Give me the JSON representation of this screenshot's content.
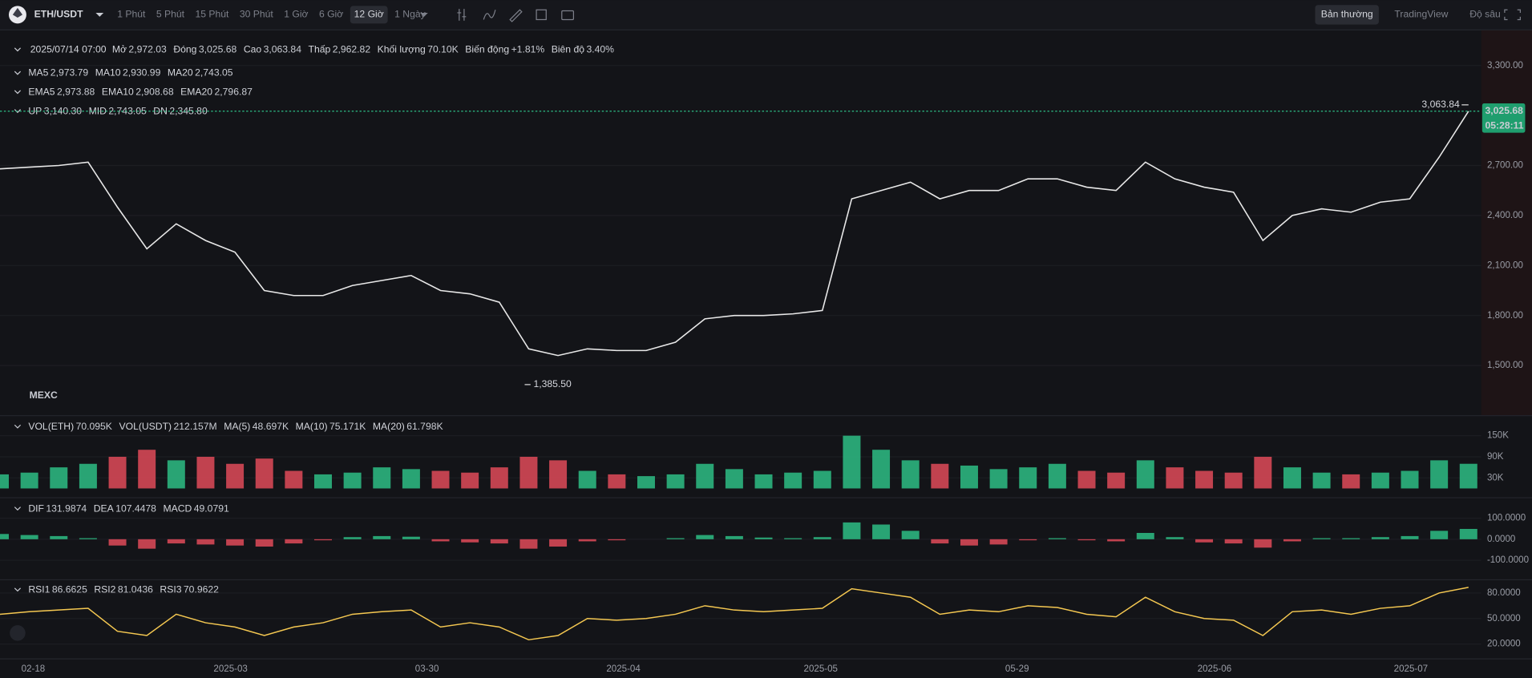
{
  "toolbar": {
    "symbol": "ETH/USDT",
    "timeframes": [
      {
        "label": "1 Phút"
      },
      {
        "label": "5 Phút"
      },
      {
        "label": "15 Phút"
      },
      {
        "label": "30 Phút"
      },
      {
        "label": "1 Giờ"
      },
      {
        "label": "6 Giờ"
      },
      {
        "label": "12 Giờ",
        "active": true
      },
      {
        "label": "1 Ngày"
      }
    ],
    "views": [
      {
        "label": "Bản thường",
        "active": true
      },
      {
        "label": "TradingView"
      },
      {
        "label": "Độ sâu"
      }
    ]
  },
  "info": {
    "time": "2025/07/14 07:00",
    "items": [
      {
        "label": "Mở",
        "value": "2,972.03"
      },
      {
        "label": "Đóng",
        "value": "3,025.68"
      },
      {
        "label": "Cao",
        "value": "3,063.84"
      },
      {
        "label": "Thấp",
        "value": "2,962.82"
      },
      {
        "label": "Khối lượng",
        "value": "70.10K"
      },
      {
        "label": "Biến động",
        "value": "+1.81%"
      },
      {
        "label": "Biên độ",
        "value": "3.40%"
      }
    ]
  },
  "indicators": [
    {
      "items": [
        {
          "label": "MA5",
          "value": "2,973.79",
          "color": "#f5c851"
        },
        {
          "label": "MA10",
          "value": "2,930.99",
          "color": "#b37feb"
        },
        {
          "label": "MA20",
          "value": "2,743.05",
          "color": "#e8b87a"
        }
      ]
    },
    {
      "items": [
        {
          "label": "EMA5",
          "value": "2,973.88",
          "color": "#f5c851"
        },
        {
          "label": "EMA10",
          "value": "2,908.68",
          "color": "#b37feb"
        },
        {
          "label": "EMA20",
          "value": "2,796.87",
          "color": "#c6d98a"
        }
      ]
    },
    {
      "items": [
        {
          "label": "UP",
          "value": "3,140.30",
          "color": "#f5c851"
        },
        {
          "label": "MID",
          "value": "2,743.05",
          "color": "#b37feb"
        },
        {
          "label": "DN",
          "value": "2,345.80",
          "color": "#c6d98a"
        }
      ]
    }
  ],
  "chart_data": {
    "type": "line",
    "color": "#e8e8e8",
    "values": [
      2680,
      2690,
      2700,
      2720,
      2450,
      2200,
      2350,
      2250,
      2180,
      1950,
      1920,
      1920,
      1980,
      2010,
      2040,
      1950,
      1930,
      1880,
      1600,
      1560,
      1600,
      1590,
      1590,
      1640,
      1780,
      1800,
      1800,
      1810,
      1830,
      2500,
      2550,
      2600,
      2500,
      2550,
      2550,
      2620,
      2620,
      2570,
      2550,
      2720,
      2620,
      2570,
      2540,
      2250,
      2400,
      2440,
      2420,
      2480,
      2500,
      2750,
      3025.68
    ],
    "ylim": [
      1202,
      3505
    ],
    "yticks": [
      {
        "value": 3300,
        "label": "3,300.00"
      },
      {
        "value": 2700,
        "label": "2,700.00"
      },
      {
        "value": 2400,
        "label": "2,400.00"
      },
      {
        "value": 2100,
        "label": "2,100.00"
      },
      {
        "value": 1800,
        "label": "1,800.00"
      },
      {
        "value": 1500,
        "label": "1,500.00"
      }
    ],
    "last_price": {
      "value": 3025.68,
      "label": "3,025.68",
      "countdown": "05:28:11"
    },
    "high_annotation": {
      "value": 3063.84,
      "label": "3,063.84"
    },
    "low_annotation": {
      "value": 1385.5,
      "label": "1,385.50"
    },
    "watermark": "MEXC",
    "x_labels": [
      "02-18",
      "2025-03",
      "03-30",
      "2025-04",
      "2025-05",
      "05-29",
      "2025-06",
      "2025-07"
    ]
  },
  "volume": {
    "legend": [
      {
        "label": "VOL(ETH)",
        "value": "70.095K",
        "color": "#2ebd85"
      },
      {
        "label": "VOL(USDT)",
        "value": "212.157M",
        "color": "#2ebd85"
      },
      {
        "label": "MA(5)",
        "value": "48.697K",
        "color": "#f5c851"
      },
      {
        "label": "MA(10)",
        "value": "75.171K",
        "color": "#b37feb"
      },
      {
        "label": "MA(20)",
        "value": "61.798K",
        "color": "#c6d98a"
      }
    ],
    "values": [
      40000,
      45000,
      60000,
      70000,
      90000,
      110000,
      80000,
      90000,
      70000,
      85000,
      50000,
      40000,
      45000,
      60000,
      55000,
      50000,
      45000,
      60000,
      90000,
      80000,
      50000,
      40000,
      35000,
      40000,
      70000,
      55000,
      40000,
      45000,
      50000,
      150000,
      110000,
      80000,
      70000,
      65000,
      55000,
      60000,
      70000,
      50000,
      45000,
      80000,
      60000,
      50000,
      45000,
      90000,
      60000,
      45000,
      40000,
      45000,
      50000,
      80000,
      70095
    ],
    "ylim": [
      0,
      200000
    ],
    "yticks": [
      {
        "value": 150000,
        "label": "150K"
      },
      {
        "value": 90000,
        "label": "90K"
      },
      {
        "value": 30000,
        "label": "30K"
      }
    ]
  },
  "macd": {
    "legend": [
      {
        "label": "DIF",
        "value": "131.9874",
        "color": "#f5c851"
      },
      {
        "label": "DEA",
        "value": "107.4478",
        "color": "#b37feb"
      },
      {
        "label": "MACD",
        "value": "49.0791",
        "color": "#b37feb"
      }
    ],
    "values": [
      25,
      20,
      15,
      5,
      -30,
      -45,
      -20,
      -25,
      -30,
      -35,
      -20,
      -5,
      10,
      15,
      12,
      -10,
      -15,
      -20,
      -45,
      -35,
      -10,
      -5,
      0,
      5,
      20,
      15,
      8,
      5,
      10,
      80,
      70,
      40,
      -20,
      -30,
      -25,
      -5,
      5,
      -5,
      -10,
      30,
      10,
      -15,
      -20,
      -40,
      -10,
      5,
      5,
      10,
      15,
      40,
      49.0791
    ],
    "ylim": [
      -186,
      186
    ],
    "yticks": [
      {
        "value": 100,
        "label": "100.0000"
      },
      {
        "value": 0,
        "label": "0.0000"
      },
      {
        "value": -100,
        "label": "-100.0000"
      }
    ]
  },
  "rsi": {
    "legend": [
      {
        "label": "RSI1",
        "value": "86.6625",
        "color": "#f5c851"
      },
      {
        "label": "RSI2",
        "value": "81.0436",
        "color": "#b37feb"
      },
      {
        "label": "RSI3",
        "value": "70.9622",
        "color": "#c6d98a"
      }
    ],
    "values": [
      55,
      58,
      60,
      62,
      35,
      30,
      55,
      45,
      40,
      30,
      40,
      45,
      55,
      58,
      60,
      40,
      45,
      40,
      25,
      30,
      50,
      48,
      50,
      55,
      65,
      60,
      58,
      60,
      62,
      85,
      80,
      75,
      55,
      60,
      58,
      65,
      63,
      55,
      52,
      75,
      58,
      50,
      48,
      30,
      58,
      60,
      55,
      62,
      65,
      80,
      86.6625
    ],
    "ylim": [
      5.4,
      92.7
    ],
    "yticks": [
      {
        "value": 80,
        "label": "80.0000"
      },
      {
        "value": 50,
        "label": "50.0000"
      },
      {
        "value": 20,
        "label": "20.0000"
      }
    ]
  }
}
